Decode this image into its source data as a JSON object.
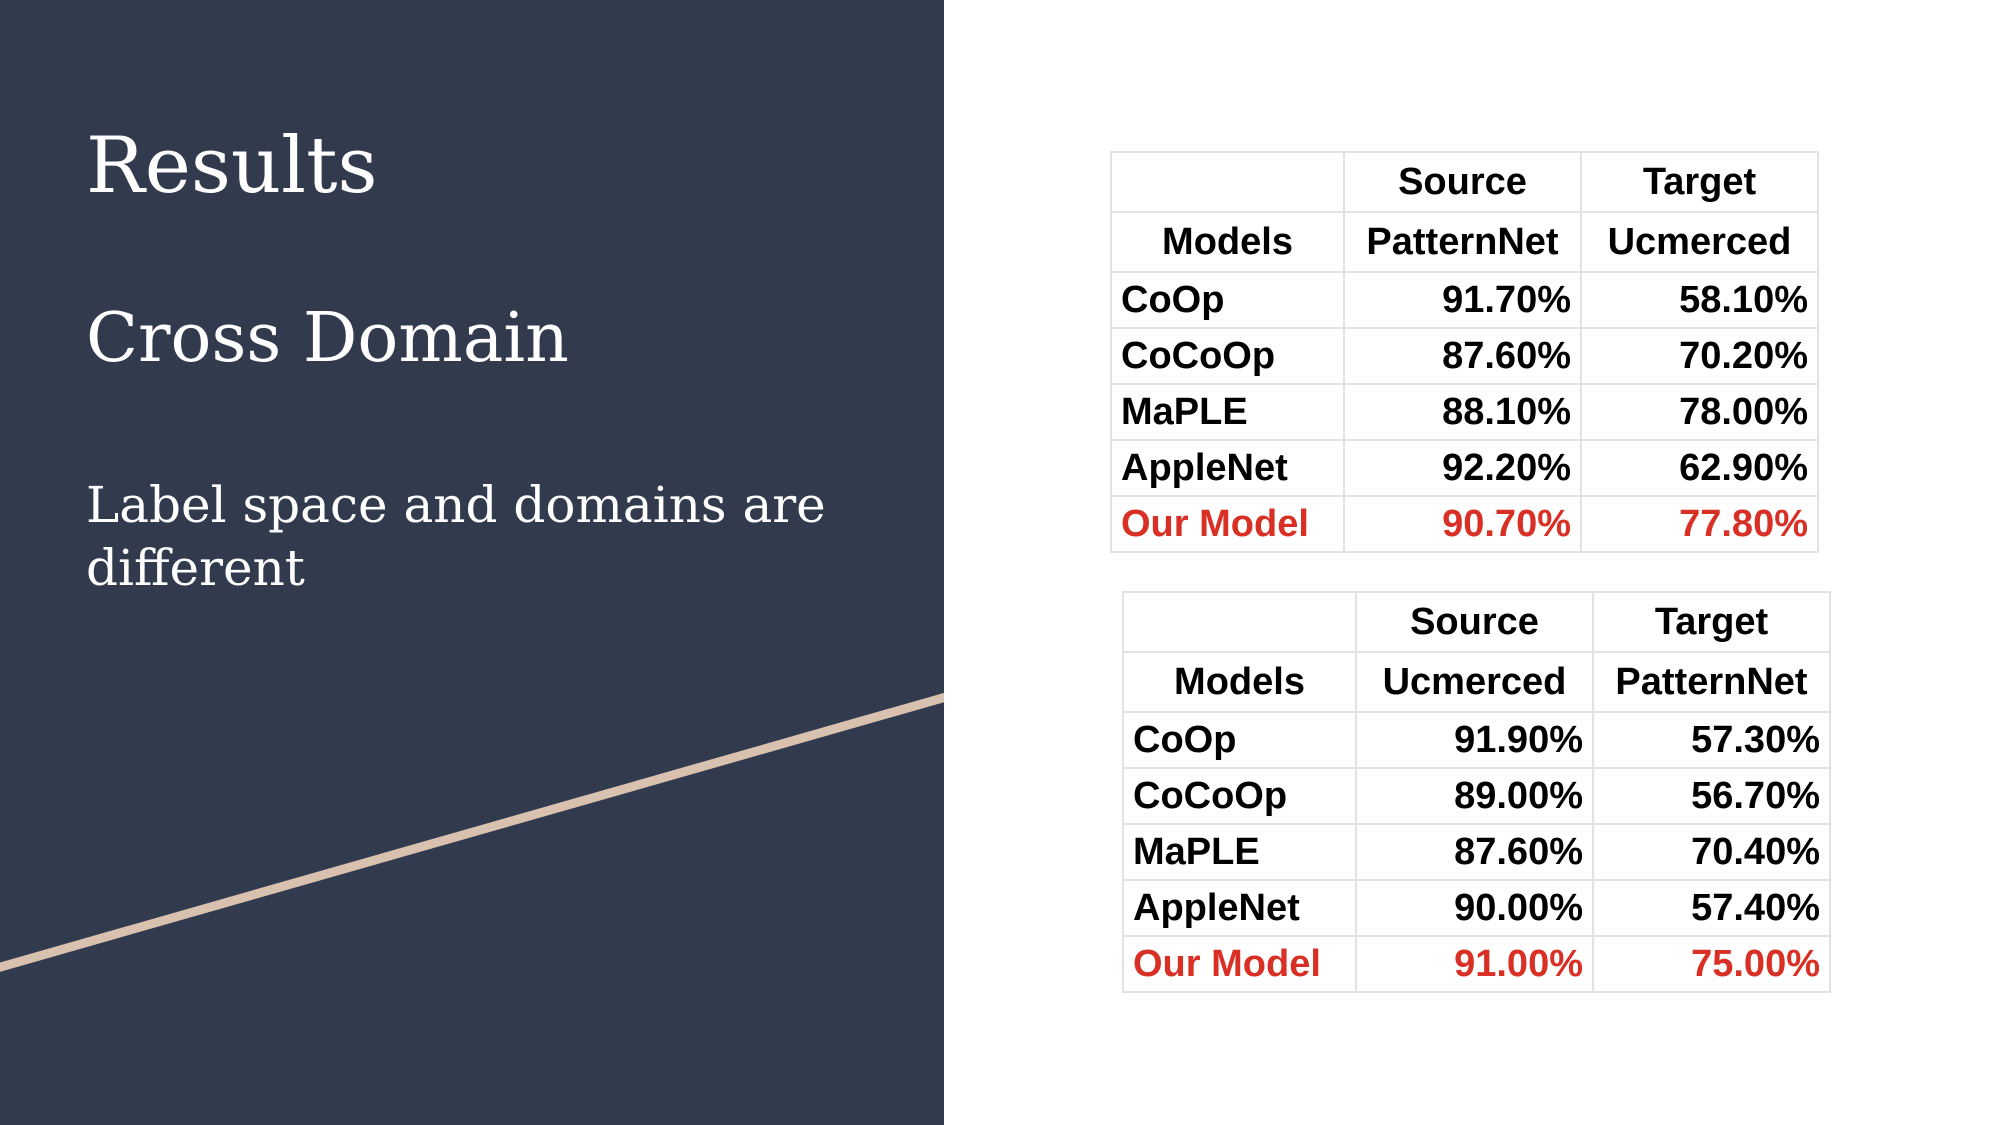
{
  "slide": {
    "title": "Results",
    "subtitle": "Cross Domain",
    "body": "Label space and domains are different"
  },
  "colors": {
    "left_panel": "#323a4d",
    "accent_line": "#d9c1b0",
    "highlight": "#d93025"
  },
  "tables": [
    {
      "header_row_1": [
        "",
        "Source",
        "Target"
      ],
      "header_row_2": [
        "Models",
        "PatternNet",
        "Ucmerced"
      ],
      "rows": [
        {
          "model": "CoOp",
          "source": "91.70%",
          "target": "58.10%"
        },
        {
          "model": "CoCoOp",
          "source": "87.60%",
          "target": "70.20%"
        },
        {
          "model": "MaPLE",
          "source": "88.10%",
          "target": "78.00%"
        },
        {
          "model": "AppleNet",
          "source": "92.20%",
          "target": "62.90%"
        },
        {
          "model": "Our Model",
          "source": "90.70%",
          "target": "77.80%"
        }
      ]
    },
    {
      "header_row_1": [
        "",
        "Source",
        "Target"
      ],
      "header_row_2": [
        "Models",
        "Ucmerced",
        "PatternNet"
      ],
      "rows": [
        {
          "model": "CoOp",
          "source": "91.90%",
          "target": "57.30%"
        },
        {
          "model": "CoCoOp",
          "source": "89.00%",
          "target": "56.70%"
        },
        {
          "model": "MaPLE",
          "source": "87.60%",
          "target": "70.40%"
        },
        {
          "model": "AppleNet",
          "source": "90.00%",
          "target": "57.40%"
        },
        {
          "model": "Our Model",
          "source": "91.00%",
          "target": "75.00%"
        }
      ]
    }
  ]
}
